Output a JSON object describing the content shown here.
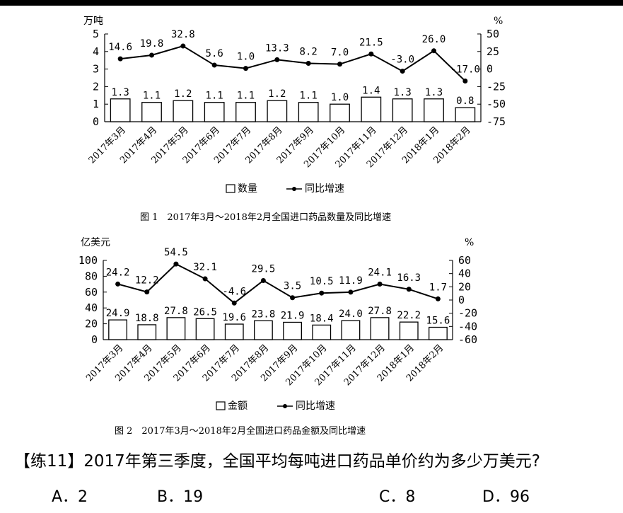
{
  "chart_data": [
    {
      "type": "bar+line",
      "title": "",
      "caption": "图 1　2017年3月～2018年2月全国进口药品数量及同比增速",
      "categories": [
        "2017年3月",
        "2017年4月",
        "2017年5月",
        "2017年6月",
        "2017年7月",
        "2017年8月",
        "2017年9月",
        "2017年10月",
        "2017年11月",
        "2017年12月",
        "2018年1月",
        "2018年2月"
      ],
      "series": [
        {
          "name": "数量",
          "kind": "bar",
          "axis": "left",
          "values": [
            1.3,
            1.1,
            1.2,
            1.1,
            1.1,
            1.2,
            1.1,
            1.0,
            1.4,
            1.3,
            1.3,
            0.8
          ],
          "labels": [
            "1.3",
            "1.1",
            "1.2",
            "1.1",
            "1.1",
            "1.2",
            "1.1",
            "1.0",
            "1.4",
            "1.3",
            "1.3",
            "0.8"
          ]
        },
        {
          "name": "同比增速",
          "kind": "line",
          "axis": "right",
          "values": [
            14.6,
            19.8,
            32.8,
            5.6,
            1.0,
            13.3,
            8.2,
            7.0,
            21.5,
            -3.0,
            26.0,
            -17.0
          ],
          "labels": [
            "14.6",
            "19.8",
            "32.8",
            "5.6",
            "1.0",
            "13.3",
            "8.2",
            "7.0",
            "21.5",
            "-3.0",
            "26.0",
            "-17.0"
          ]
        }
      ],
      "y_left": {
        "unit": "万吨",
        "min": 0,
        "max": 5,
        "ticks": [
          "0",
          "1",
          "2",
          "3",
          "4",
          "5"
        ]
      },
      "y_right": {
        "unit": "%",
        "min": -75,
        "max": 50,
        "ticks": [
          "50",
          "25",
          "0",
          "-25",
          "-50",
          "-75"
        ]
      },
      "legend": {
        "placement": "bottom",
        "bar": "数量",
        "line": "同比增速"
      },
      "grid": false
    },
    {
      "type": "bar+line",
      "title": "",
      "caption": "图 2　2017年3月～2018年2月全国进口药品金额及同比增速",
      "categories": [
        "2017年3月",
        "2017年4月",
        "2017年5月",
        "2017年6月",
        "2017年7月",
        "2017年8月",
        "2017年9月",
        "2017年10月",
        "2017年11月",
        "2017年12月",
        "2018年1月",
        "2018年2月"
      ],
      "series": [
        {
          "name": "金额",
          "kind": "bar",
          "axis": "left",
          "values": [
            24.9,
            18.8,
            27.8,
            26.5,
            19.6,
            23.8,
            21.9,
            18.4,
            24.0,
            27.8,
            22.2,
            15.6
          ],
          "labels": [
            "24.9",
            "18.8",
            "27.8",
            "26.5",
            "19.6",
            "23.8",
            "21.9",
            "18.4",
            "24.0",
            "27.8",
            "22.2",
            "15.6"
          ]
        },
        {
          "name": "同比增速",
          "kind": "line",
          "axis": "right",
          "values": [
            24.2,
            12.2,
            54.5,
            32.1,
            -4.6,
            29.5,
            3.5,
            10.5,
            11.9,
            24.1,
            16.3,
            1.7
          ],
          "labels": [
            "24.2",
            "12.2",
            "54.5",
            "32.1",
            "-4.6",
            "29.5",
            "3.5",
            "10.5",
            "11.9",
            "24.1",
            "16.3",
            "1.7"
          ]
        }
      ],
      "y_left": {
        "unit": "亿美元",
        "min": 0,
        "max": 100,
        "ticks": [
          "0",
          "20",
          "40",
          "60",
          "80",
          "100"
        ]
      },
      "y_right": {
        "unit": "%",
        "min": -60,
        "max": 60,
        "ticks": [
          "60",
          "40",
          "20",
          "0",
          "-20",
          "-40",
          "-60"
        ]
      },
      "legend": {
        "placement": "bottom",
        "bar": "金额",
        "line": "同比增速"
      },
      "grid": false
    }
  ],
  "question": {
    "text": "【练11】2017年第三季度，全国平均每吨进口药品单价约为多少万美元?",
    "options": [
      "A．2",
      "B．19",
      "C．8",
      "D．96"
    ]
  }
}
